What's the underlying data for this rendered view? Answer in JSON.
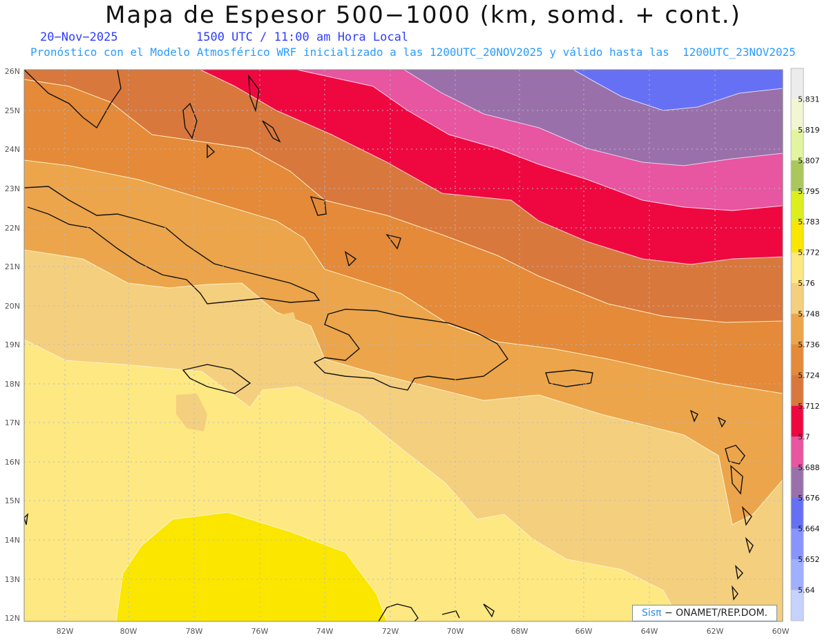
{
  "header": {
    "title": "Mapa de Espesor 500−1000 (km, somd. + cont.)",
    "date": "20−Nov−2025",
    "time_line": "1500 UTC / 11:00 am Hora Local",
    "forecast_note": "Pronóstico con el Modelo Atmosférico WRF inicializado a las 1200UTC_20NOV2025 y válido hasta las  1200UTC_23NOV2025"
  },
  "map": {
    "lat_labels": [
      "26N",
      "25N",
      "24N",
      "23N",
      "22N",
      "21N",
      "20N",
      "19N",
      "18N",
      "17N",
      "16N",
      "15N",
      "14N",
      "13N",
      "12N"
    ],
    "lon_labels": [
      "82W",
      "80W",
      "78W",
      "76W",
      "74W",
      "72W",
      "70W",
      "68W",
      "66W",
      "64W",
      "62W",
      "60W"
    ],
    "fill_colors": [
      "#fbe600",
      "#fde882",
      "#f4cf7e",
      "#eca54a",
      "#e48a38",
      "#d9783c",
      "#ef0840",
      "#e855a0",
      "#9a70aa",
      "#6670f4"
    ]
  },
  "colorbar": {
    "labels": [
      "5.831",
      "5.819",
      "5.807",
      "5.795",
      "5.783",
      "5.772",
      "5.76",
      "5.748",
      "5.736",
      "5.724",
      "5.712",
      "5.7",
      "5.688",
      "5.676",
      "5.664",
      "5.652",
      "5.64"
    ],
    "colors": [
      "#ececec",
      "#f2f6d2",
      "#e2f4a0",
      "#a8c85c",
      "#dcef1c",
      "#fbe600",
      "#fde882",
      "#f4cf7e",
      "#eca54a",
      "#e48a38",
      "#d9783c",
      "#ef0840",
      "#e855a0",
      "#9a70aa",
      "#6670f4",
      "#8894ff",
      "#9fb0ff",
      "#c6d2ff"
    ]
  },
  "credit": {
    "brand": "Sisπ",
    "text": "− ONAMET/REP.DOM."
  }
}
